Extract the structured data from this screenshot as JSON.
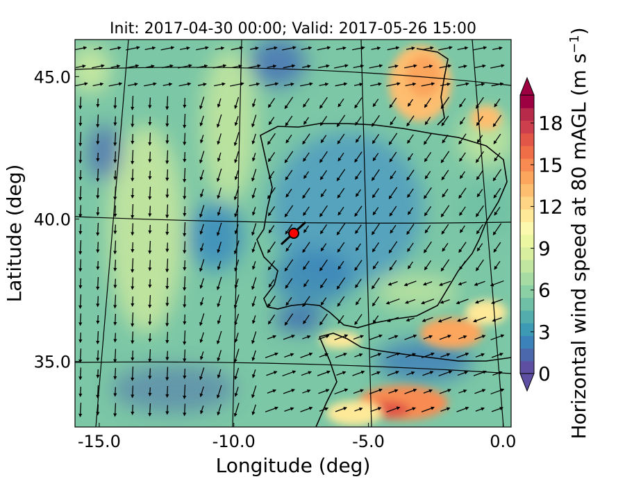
{
  "title": "Init: 2017-04-30 00:00; Valid: 2017-05-26 15:00",
  "chart_data": {
    "type": "heatmap",
    "title": "Init: 2017-04-30 00:00; Valid: 2017-05-26 15:00",
    "xlabel": "Longitude (deg)",
    "ylabel": "Latitude (deg)",
    "xlim": [
      -15.9,
      0.3
    ],
    "ylim": [
      32.7,
      46.3
    ],
    "xticks": [
      "-15.0",
      "-10.0",
      "-5.0",
      "0.0"
    ],
    "yticks": [
      "35.0",
      "40.0",
      "45.0"
    ],
    "colorbar": {
      "label": "Horizontal wind speed at 80 mAGL (m s$^{-1}$)",
      "label_main": "Horizontal wind speed at 80 mAGL (m s",
      "label_exp": "−1",
      "label_close": ")",
      "range": [
        0,
        20
      ],
      "extend": "both",
      "ticks": [
        "0",
        "3",
        "6",
        "9",
        "12",
        "15",
        "18"
      ],
      "colors": [
        "#5e4fa2",
        "#4b68ad",
        "#3a82b9",
        "#3d9ab4",
        "#52adac",
        "#6ebfa5",
        "#8bcfa4",
        "#a7dba4",
        "#c1e6a0",
        "#d8ef9f",
        "#ecf7a1",
        "#fbf9ad",
        "#fee999",
        "#fed585",
        "#fdbe6f",
        "#fca55d",
        "#f88b51",
        "#f06e47",
        "#e15647",
        "#ce3f4d",
        "#b82a4a",
        "#9e0142"
      ]
    },
    "site_marker": {
      "lon": -7.9,
      "lat": 39.3,
      "color": "#ff0000"
    },
    "wind_field_description": "Quiver vectors of 80 m wind over the Iberian Peninsula region",
    "high_wind_regions": [
      {
        "lon": -3.0,
        "lat": 44.6,
        "speed": 14
      },
      {
        "lon": -2.2,
        "lat": 36.0,
        "speed": 14
      },
      {
        "lon": -3.5,
        "lat": 33.5,
        "speed": 16
      }
    ]
  }
}
